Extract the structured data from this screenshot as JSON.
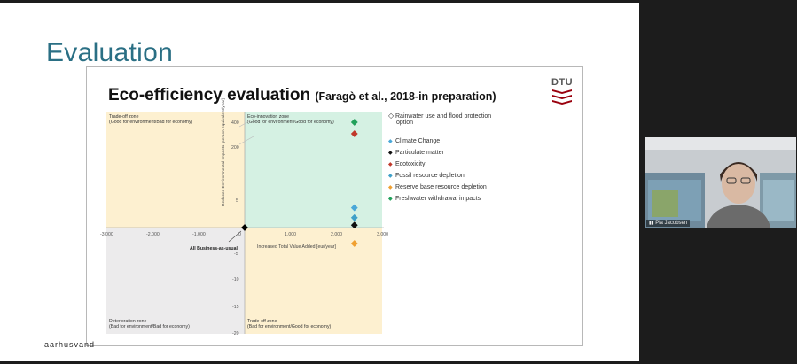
{
  "slide": {
    "title": "Evaluation",
    "footer_logo": "aarhusvand"
  },
  "figure": {
    "title": "Eco-efficiency evaluation",
    "subtitle": "(Faragò et al., 2018-in preparation)",
    "logo_text": "DTU"
  },
  "zones": {
    "top_left": {
      "line1": "Trade-off zone",
      "line2": "(Good for environment/Bad for economy)",
      "color": "#fdf0d0"
    },
    "top_right": {
      "line1": "Eco-innovation zone",
      "line2": "(Good for environment/Good for economy)",
      "color": "#d5f1e3"
    },
    "bottom_left": {
      "line1": "Deterioration zone",
      "line2": "(Bad for environment/Bad for economy)",
      "color": "#ecebec"
    },
    "bottom_right": {
      "line1": "Trade-off zone",
      "line2": "(Bad for environment/Good for economy)",
      "color": "#fdf0d0"
    }
  },
  "axes": {
    "x_label": "Increased Total Value Added [eur/year]",
    "y_label": "Reduced Environmental Impacts [person equivalent/year]",
    "x_ticks": [
      "-3,000",
      "-2,000",
      "-1,000",
      "0",
      "1,000",
      "2,000",
      "3,000"
    ],
    "y_ticks_upper": [
      "400",
      "200",
      "5"
    ],
    "y_ticks_lower": [
      "-5",
      "-10",
      "-15",
      "-20"
    ],
    "origin_label": "All Business-as-usual"
  },
  "chart_data": {
    "type": "scatter",
    "x_axis": {
      "label": "Increased Total Value Added [eur/year]",
      "ticks": [
        -3000,
        -2000,
        -1000,
        0,
        1000,
        2000,
        3000
      ]
    },
    "y_axis": {
      "label": "Reduced Environmental Impacts [person equivalent/year]",
      "ticks": [
        400,
        200,
        5,
        -5,
        -10,
        -15,
        -20
      ]
    },
    "series": [
      {
        "name": "Rainwater use and flood protection option",
        "color": "#000000",
        "points": [
          [
            0,
            0
          ]
        ]
      },
      {
        "name": "Climate Change",
        "color": "#4aa8d8",
        "points": [
          [
            2380,
            4
          ]
        ]
      },
      {
        "name": "Particulate matter",
        "color": "#111111",
        "points": [
          [
            2380,
            0.5
          ]
        ]
      },
      {
        "name": "Ecotoxicity",
        "color": "#c0392b",
        "points": [
          [
            2380,
            200
          ]
        ]
      },
      {
        "name": "Fossil resource depletion",
        "color": "#3fa0c8",
        "points": [
          [
            2380,
            2
          ]
        ]
      },
      {
        "name": "Reserve base resource depletion",
        "color": "#f0a030",
        "points": [
          [
            2380,
            -3
          ]
        ]
      },
      {
        "name": "Freshwater withdrawal impacts",
        "color": "#21a05a",
        "points": [
          [
            2380,
            400
          ]
        ]
      }
    ]
  },
  "legend": [
    {
      "label": "Rainwater use and flood protection",
      "label2": "option",
      "marker": "◇",
      "color": "#000000"
    },
    {
      "label": "Climate Change",
      "marker": "◆",
      "color": "#4aa8d8"
    },
    {
      "label": "Particulate matter",
      "marker": "◆",
      "color": "#111111"
    },
    {
      "label": "Ecotoxicity",
      "marker": "◆",
      "color": "#c0392b"
    },
    {
      "label": "Fossil resource depletion",
      "marker": "◆",
      "color": "#3fa0c8"
    },
    {
      "label": "Reserve base resource depletion",
      "marker": "◆",
      "color": "#f0a030"
    },
    {
      "label": "Freshwater withdrawal impacts",
      "marker": "◆",
      "color": "#21a05a"
    }
  ],
  "video": {
    "participant_name": "Pia Jacobsen"
  }
}
